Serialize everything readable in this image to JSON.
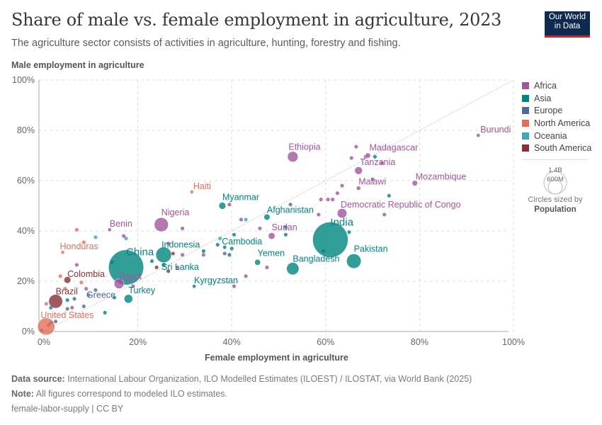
{
  "header": {
    "title": "Share of male vs. female employment in agriculture, 2023",
    "subtitle": "The agriculture sector consists of activities in agriculture, hunting, forestry and fishing.",
    "logo_line1": "Our World",
    "logo_line2": "in Data"
  },
  "footer": {
    "source_label": "Data source:",
    "source_text": "International Labour Organization, ILO Modelled Estimates (ILOEST) / ILOSTAT, via World Bank (2025)",
    "note_label": "Note:",
    "note_text": "All figures correspond to modeled ILO estimates.",
    "license": "female-labor-supply | CC BY"
  },
  "legend": {
    "items": [
      {
        "label": "Africa",
        "color": "#a2559c"
      },
      {
        "label": "Asia",
        "color": "#00847e"
      },
      {
        "label": "Europe",
        "color": "#4c6a9c"
      },
      {
        "label": "North America",
        "color": "#e56e5a"
      },
      {
        "label": "Oceania",
        "color": "#38aaba"
      },
      {
        "label": "South America",
        "color": "#883039"
      }
    ],
    "size_big": "1.4B",
    "size_small": "600M",
    "size_note": "Circles sized by",
    "size_var": "Population"
  },
  "chart_data": {
    "type": "scatter",
    "title": "Share of male vs. female employment in agriculture, 2023",
    "xlabel": "Female employment in agriculture",
    "ylabel": "Male employment in agriculture",
    "xlim": [
      0,
      100
    ],
    "ylim": [
      0,
      100
    ],
    "x_ticks": [
      "0%",
      "20%",
      "40%",
      "60%",
      "80%",
      "100%"
    ],
    "y_ticks": [
      "0%",
      "20%",
      "40%",
      "60%",
      "80%",
      "100%"
    ],
    "grid": true,
    "reference_line": "y = x",
    "legend_position": "right",
    "labeled_points": [
      {
        "name": "Burundi",
        "region": "Africa",
        "x": 92.5,
        "y": 78,
        "pop_m": 13
      },
      {
        "name": "Ethiopia",
        "region": "Africa",
        "x": 53,
        "y": 69.5,
        "pop_m": 127
      },
      {
        "name": "Madagascar",
        "region": "Africa",
        "x": 69,
        "y": 70,
        "pop_m": 30
      },
      {
        "name": "Tanzania",
        "region": "Africa",
        "x": 67,
        "y": 64,
        "pop_m": 67
      },
      {
        "name": "Mozambique",
        "region": "Africa",
        "x": 79,
        "y": 59,
        "pop_m": 34
      },
      {
        "name": "Malawi",
        "region": "Africa",
        "x": 67,
        "y": 57,
        "pop_m": 21
      },
      {
        "name": "Democratic Republic of Congo",
        "region": "Africa",
        "x": 63.5,
        "y": 47,
        "pop_m": 105
      },
      {
        "name": "India",
        "region": "Asia",
        "x": 61,
        "y": 36.5,
        "pop_m": 1438
      },
      {
        "name": "Pakistan",
        "region": "Asia",
        "x": 66,
        "y": 28,
        "pop_m": 240
      },
      {
        "name": "Bangladesh",
        "region": "Asia",
        "x": 53,
        "y": 25,
        "pop_m": 173
      },
      {
        "name": "Sudan",
        "region": "Africa",
        "x": 48.5,
        "y": 38,
        "pop_m": 50
      },
      {
        "name": "Afghanistan",
        "region": "Asia",
        "x": 47.5,
        "y": 45.5,
        "pop_m": 42
      },
      {
        "name": "Myanmar",
        "region": "Asia",
        "x": 38,
        "y": 50,
        "pop_m": 54
      },
      {
        "name": "Yemen",
        "region": "Asia",
        "x": 45.5,
        "y": 27.5,
        "pop_m": 39
      },
      {
        "name": "Cambodia",
        "region": "Asia",
        "x": 38.5,
        "y": 33.5,
        "pop_m": 17
      },
      {
        "name": "Kyrgyzstan",
        "region": "Asia",
        "x": 32,
        "y": 18,
        "pop_m": 7
      },
      {
        "name": "Haiti",
        "region": "North America",
        "x": 31.5,
        "y": 55.5,
        "pop_m": 12
      },
      {
        "name": "Nigeria",
        "region": "Africa",
        "x": 25,
        "y": 42.5,
        "pop_m": 224
      },
      {
        "name": "Benin",
        "region": "Africa",
        "x": 14,
        "y": 40.5,
        "pop_m": 14
      },
      {
        "name": "China",
        "region": "Asia",
        "x": 17.5,
        "y": 25.5,
        "pop_m": 1411
      },
      {
        "name": "Indonesia",
        "region": "Asia",
        "x": 25.5,
        "y": 30.5,
        "pop_m": 278
      },
      {
        "name": "Sri Lanka",
        "region": "Asia",
        "x": 25.5,
        "y": 26.5,
        "pop_m": 22
      },
      {
        "name": "Egypt",
        "region": "Africa",
        "x": 16,
        "y": 19,
        "pop_m": 113
      },
      {
        "name": "Turkey",
        "region": "Asia",
        "x": 18,
        "y": 13,
        "pop_m": 85
      },
      {
        "name": "Honduras",
        "region": "North America",
        "x": 4,
        "y": 31.5,
        "pop_m": 10
      },
      {
        "name": "Colombia",
        "region": "South America",
        "x": 5,
        "y": 20.5,
        "pop_m": 52
      },
      {
        "name": "Brazil",
        "region": "South America",
        "x": 2.5,
        "y": 12,
        "pop_m": 216
      },
      {
        "name": "Greece",
        "region": "Europe",
        "x": 9.5,
        "y": 14.5,
        "pop_m": 10
      },
      {
        "name": "United States",
        "region": "North America",
        "x": 0.5,
        "y": 2,
        "pop_m": 335
      }
    ],
    "unlabeled_points": [
      {
        "region": "Africa",
        "x": 66.5,
        "y": 73.5
      },
      {
        "region": "Africa",
        "x": 65.5,
        "y": 69
      },
      {
        "region": "Africa",
        "x": 68.5,
        "y": 69.5
      },
      {
        "region": "Asia",
        "x": 70.5,
        "y": 69.5
      },
      {
        "region": "Africa",
        "x": 72,
        "y": 67
      },
      {
        "region": "Africa",
        "x": 70,
        "y": 60.5
      },
      {
        "region": "Africa",
        "x": 63.5,
        "y": 58
      },
      {
        "region": "Africa",
        "x": 62.5,
        "y": 55
      },
      {
        "region": "Asia",
        "x": 73.5,
        "y": 54
      },
      {
        "region": "Africa",
        "x": 59,
        "y": 52.5
      },
      {
        "region": "Africa",
        "x": 60.5,
        "y": 52.5
      },
      {
        "region": "Africa",
        "x": 61.5,
        "y": 52.5
      },
      {
        "region": "Africa",
        "x": 58.5,
        "y": 46.5
      },
      {
        "region": "Africa",
        "x": 72.5,
        "y": 46.5
      },
      {
        "region": "Asia",
        "x": 65,
        "y": 39.5
      },
      {
        "region": "Asia",
        "x": 59.5,
        "y": 32
      },
      {
        "region": "Europe",
        "x": 52.5,
        "y": 50.5
      },
      {
        "region": "Africa",
        "x": 42,
        "y": 44.5
      },
      {
        "region": "Oceania",
        "x": 43,
        "y": 44.5
      },
      {
        "region": "Africa",
        "x": 46,
        "y": 41
      },
      {
        "region": "Asia",
        "x": 51.5,
        "y": 41.5
      },
      {
        "region": "Asia",
        "x": 51.5,
        "y": 38.5
      },
      {
        "region": "Africa",
        "x": 47.5,
        "y": 25.5
      },
      {
        "region": "Africa",
        "x": 43,
        "y": 22
      },
      {
        "region": "Africa",
        "x": 40.5,
        "y": 18
      },
      {
        "region": "Africa",
        "x": 39.5,
        "y": 50.5
      },
      {
        "region": "Oceania",
        "x": 37.5,
        "y": 37
      },
      {
        "region": "Asia",
        "x": 40.5,
        "y": 38.5
      },
      {
        "region": "Asia",
        "x": 37,
        "y": 34.5
      },
      {
        "region": "Asia",
        "x": 40,
        "y": 33
      },
      {
        "region": "Europe",
        "x": 38.5,
        "y": 31
      },
      {
        "region": "Asia",
        "x": 39.5,
        "y": 30.5
      },
      {
        "region": "Africa",
        "x": 29.5,
        "y": 41
      },
      {
        "region": "Asia",
        "x": 34,
        "y": 32
      },
      {
        "region": "Africa",
        "x": 34,
        "y": 30.5
      },
      {
        "region": "Africa",
        "x": 26.5,
        "y": 35
      },
      {
        "region": "South America",
        "x": 27.5,
        "y": 31
      },
      {
        "region": "Africa",
        "x": 29.5,
        "y": 30.5
      },
      {
        "region": "Asia",
        "x": 23,
        "y": 28
      },
      {
        "region": "South America",
        "x": 24,
        "y": 25.5
      },
      {
        "region": "South America",
        "x": 26.5,
        "y": 24
      },
      {
        "region": "Africa",
        "x": 28.5,
        "y": 25.5
      },
      {
        "region": "Asia",
        "x": 14.5,
        "y": 27.5
      },
      {
        "region": "Africa",
        "x": 17,
        "y": 38
      },
      {
        "region": "Oceania",
        "x": 17.5,
        "y": 37
      },
      {
        "region": "Africa",
        "x": 19,
        "y": 18
      },
      {
        "region": "North America",
        "x": 7,
        "y": 40.5
      },
      {
        "region": "Oceania",
        "x": 11,
        "y": 37.5
      },
      {
        "region": "North America",
        "x": 8.5,
        "y": 35.5
      },
      {
        "region": "Africa",
        "x": 7,
        "y": 26.5
      },
      {
        "region": "North America",
        "x": 3.5,
        "y": 22
      },
      {
        "region": "North America",
        "x": 8,
        "y": 19.5
      },
      {
        "region": "North America",
        "x": 4.5,
        "y": 17
      },
      {
        "region": "Europe",
        "x": 11,
        "y": 16.5
      },
      {
        "region": "Africa",
        "x": 9,
        "y": 17
      },
      {
        "region": "Asia",
        "x": 5,
        "y": 12.5
      },
      {
        "region": "Europe",
        "x": 6.5,
        "y": 13
      },
      {
        "region": "Europe",
        "x": 8.5,
        "y": 10
      },
      {
        "region": "Europe",
        "x": 5,
        "y": 9
      },
      {
        "region": "Africa",
        "x": 6,
        "y": 9.5
      },
      {
        "region": "Asia",
        "x": 1.5,
        "y": 9.5
      },
      {
        "region": "North America",
        "x": 0.5,
        "y": 11
      },
      {
        "region": "Asia",
        "x": 13,
        "y": 7.5
      },
      {
        "region": "Asia",
        "x": 15,
        "y": 13.5
      },
      {
        "region": "Europe",
        "x": 2.5,
        "y": 4
      },
      {
        "region": "Asia",
        "x": 1.5,
        "y": 3.5
      },
      {
        "region": "Asia",
        "x": -0.5,
        "y": 0.5
      },
      {
        "region": "Europe",
        "x": 1,
        "y": 2.5
      }
    ]
  }
}
